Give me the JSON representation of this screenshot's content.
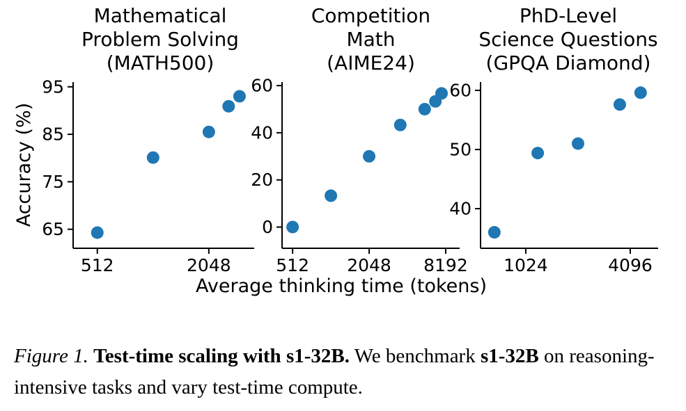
{
  "figure": {
    "ylabel": "Accuracy (%)",
    "xlabel": "Average thinking time (tokens)"
  },
  "caption": {
    "figure_label": "Figure 1.",
    "title": "Test-time scaling with s1-32B.",
    "text1": "We benchmark",
    "model": "s1-32B",
    "text2": "on reasoning-intensive tasks and vary test-time compute."
  },
  "chart_data": [
    {
      "type": "scatter",
      "title": "Mathematical\nProblem Solving\n(MATH500)",
      "ylabel": "Accuracy (%)",
      "xlabel": "Average thinking time (tokens)",
      "x_scale": "log2",
      "grid": false,
      "xlim": [
        379,
        3600
      ],
      "ylim": [
        61,
        96
      ],
      "x_ticks": [
        512,
        2048
      ],
      "y_ticks": [
        65,
        75,
        85,
        95
      ],
      "marker_color": "#1f77b4",
      "points": [
        [
          512,
          64.3
        ],
        [
          1024,
          80.1
        ],
        [
          2048,
          85.5
        ],
        [
          2620,
          90.9
        ],
        [
          3000,
          93.0
        ]
      ]
    },
    {
      "type": "scatter",
      "title": "Competition\nMath\n(AIME24)",
      "xlabel": "Average thinking time (tokens)",
      "x_scale": "log2",
      "grid": false,
      "xlim": [
        423,
        10550
      ],
      "ylim": [
        -9,
        61.5
      ],
      "x_ticks": [
        512,
        2048,
        8192
      ],
      "y_ticks": [
        0,
        20,
        40,
        60
      ],
      "marker_color": "#1f77b4",
      "points": [
        [
          512,
          0
        ],
        [
          1024,
          13.3
        ],
        [
          2048,
          30
        ],
        [
          3600,
          43.3
        ],
        [
          5600,
          50
        ],
        [
          6800,
          53.3
        ],
        [
          7600,
          56.7
        ]
      ]
    },
    {
      "type": "scatter",
      "title": "PhD-Level\nScience Questions\n(GPQA Diamond)",
      "xlabel": "Average thinking time (tokens)",
      "x_scale": "log2",
      "grid": false,
      "xlim": [
        562,
        5930
      ],
      "ylim": [
        33.3,
        61.4
      ],
      "x_ticks": [
        1024,
        4096
      ],
      "y_ticks": [
        40,
        50,
        60
      ],
      "marker_color": "#1f77b4",
      "points": [
        [
          675,
          36
        ],
        [
          1200,
          49.4
        ],
        [
          2048,
          51
        ],
        [
          3565,
          57.6
        ],
        [
          4700,
          59.6
        ]
      ]
    }
  ]
}
